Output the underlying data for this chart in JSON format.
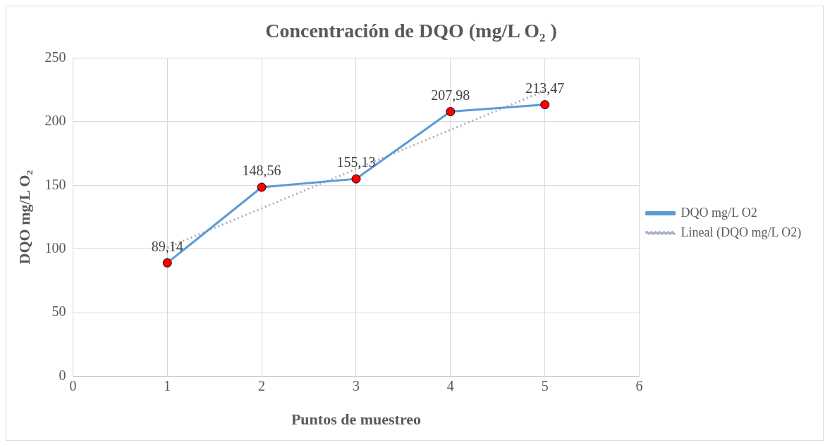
{
  "chart_data": {
    "type": "line",
    "title": "Concentración de DQO (mg/L O₂ )",
    "xlabel": "Puntos de muestreo",
    "ylabel": "DQO mg/L O₂",
    "x": [
      1,
      2,
      3,
      4,
      5
    ],
    "series": [
      {
        "name": "DQO mg/L O2",
        "color": "#5b9bd5",
        "colors": [
          "#ff0000",
          "#ff0000",
          "#ff0000",
          "#ff0000",
          "#ff0000"
        ],
        "marker": "circle",
        "line_style": "solid",
        "values": [
          89.14,
          148.56,
          155.13,
          207.98,
          213.47
        ],
        "value_labels": [
          "89,14",
          "148,56",
          "155,13",
          "207,98",
          "213,47"
        ]
      },
      {
        "name": "Lineal (DQO mg/L O2)",
        "color": "#a5b0c4",
        "marker": "none",
        "line_style": "dotted",
        "x": [
          1,
          5
        ],
        "values": [
          101.2,
          224.5
        ]
      }
    ],
    "xlim": [
      0,
      6
    ],
    "xticks": [
      0,
      1,
      2,
      3,
      4,
      5,
      6
    ],
    "ylim": [
      0,
      250
    ],
    "yticks": [
      0,
      50,
      100,
      150,
      200,
      250
    ],
    "grid": true,
    "legend": "right"
  }
}
